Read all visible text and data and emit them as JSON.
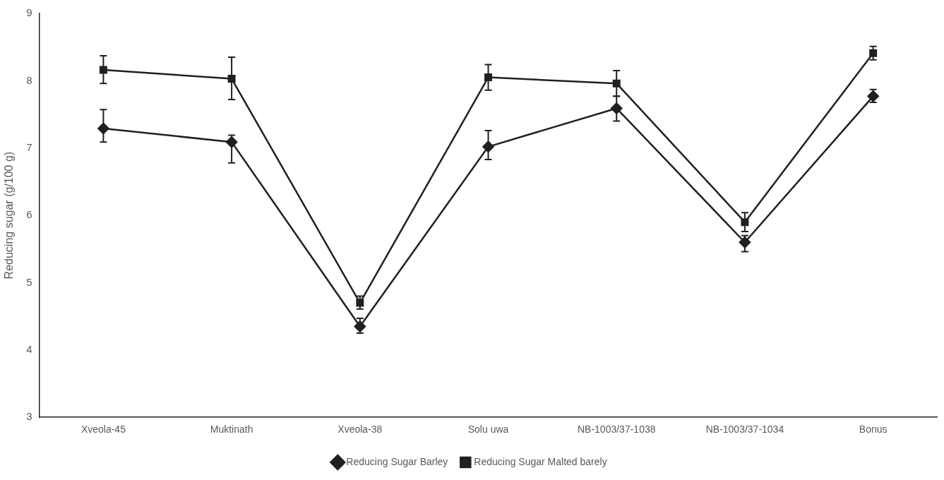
{
  "chart_data": {
    "type": "line",
    "ylabel": "Reducing sugar (g/100 g)",
    "categories": [
      "Xveola-45",
      "Muktinath",
      "Xveola-38",
      "Solu uwa",
      "NB-1003/37-1038",
      "NB-1003/37-1034",
      "Bonus"
    ],
    "ylim": [
      3,
      9
    ],
    "yticks": [
      3,
      4,
      5,
      6,
      7,
      8,
      9
    ],
    "grid": false,
    "legend": "bottom",
    "line_style": "solid",
    "series": [
      {
        "name": "Reducing Sugar Barley",
        "color": "#231f20",
        "marker": "diamond",
        "values": [
          7.29,
          7.09,
          4.35,
          7.02,
          7.59,
          5.6,
          7.77
        ],
        "errors": [
          [
            7.09,
            7.57
          ],
          [
            6.78,
            7.19
          ],
          [
            4.25,
            4.47
          ],
          [
            6.83,
            7.26
          ],
          [
            7.4,
            7.77
          ],
          [
            5.46,
            5.7
          ],
          [
            7.68,
            7.87
          ]
        ]
      },
      {
        "name": "Reducing Sugar Malted barely",
        "color": "#231f20",
        "marker": "square",
        "values": [
          8.16,
          8.03,
          4.7,
          8.05,
          7.96,
          5.9,
          8.41
        ],
        "errors": [
          [
            7.96,
            8.37
          ],
          [
            7.72,
            8.35
          ],
          [
            4.61,
            4.8
          ],
          [
            7.86,
            8.24
          ],
          [
            7.77,
            8.15
          ],
          [
            5.76,
            6.04
          ],
          [
            8.31,
            8.51
          ]
        ]
      }
    ]
  }
}
